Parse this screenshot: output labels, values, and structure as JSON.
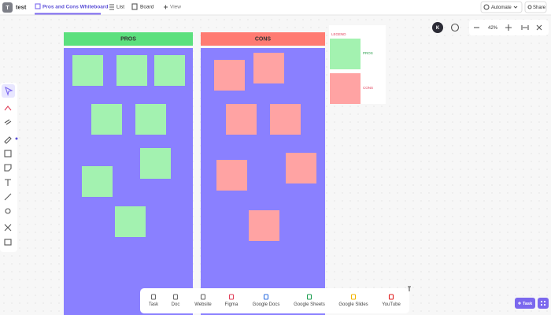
{
  "header": {
    "avatar": "T",
    "workspace": "test",
    "tabs": [
      "Pros and Cons Whiteboard",
      "List",
      "Board"
    ],
    "view": "View",
    "automate": "Automate",
    "share": "Share"
  },
  "canvas": {
    "user_initial": "K",
    "zoom": "42%"
  },
  "board": {
    "pros_title": "PROS",
    "cons_title": "CONS",
    "legend": {
      "title": "LEGEND",
      "pros": "PROS",
      "cons": "CONS"
    }
  },
  "toolbar": {
    "items": [
      "Task",
      "Doc",
      "Website",
      "Figma",
      "Google Docs",
      "Google Sheets",
      "Google Slides",
      "YouTube"
    ]
  },
  "task_button": "Task"
}
